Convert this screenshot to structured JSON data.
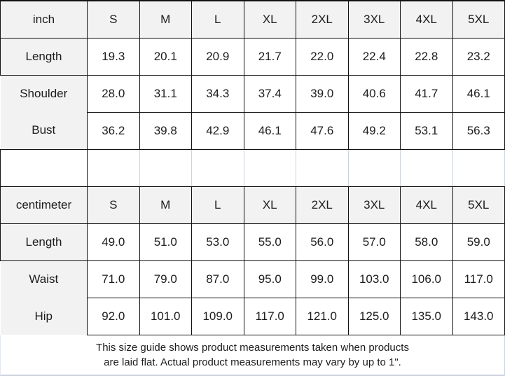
{
  "chart_data": [
    {
      "type": "table",
      "unit": "inch",
      "columns": [
        "S",
        "M",
        "L",
        "XL",
        "2XL",
        "3XL",
        "4XL",
        "5XL"
      ],
      "rows": [
        {
          "label": "Length",
          "values": [
            "19.3",
            "20.1",
            "20.9",
            "21.7",
            "22.0",
            "22.4",
            "22.8",
            "23.2"
          ]
        },
        {
          "label": "Shoulder",
          "values": [
            "28.0",
            "31.1",
            "34.3",
            "37.4",
            "39.0",
            "40.6",
            "41.7",
            "46.1"
          ]
        },
        {
          "label": "Bust",
          "values": [
            "36.2",
            "39.8",
            "42.9",
            "46.1",
            "47.6",
            "49.2",
            "53.1",
            "56.3"
          ]
        }
      ]
    },
    {
      "type": "table",
      "unit": "centimeter",
      "columns": [
        "S",
        "M",
        "L",
        "XL",
        "2XL",
        "3XL",
        "4XL",
        "5XL"
      ],
      "rows": [
        {
          "label": "Length",
          "values": [
            "49.0",
            "51.0",
            "53.0",
            "55.0",
            "56.0",
            "57.0",
            "58.0",
            "59.0"
          ]
        },
        {
          "label": "Waist",
          "values": [
            "71.0",
            "79.0",
            "87.0",
            "95.0",
            "99.0",
            "103.0",
            "106.0",
            "117.0"
          ]
        },
        {
          "label": "Hip",
          "values": [
            "92.0",
            "101.0",
            "109.0",
            "117.0",
            "121.0",
            "125.0",
            "135.0",
            "143.0"
          ]
        }
      ]
    }
  ],
  "note": {
    "line1": "This size guide shows product measurements taken when products",
    "line2": "are laid flat. Actual product measurements may vary by up to 1\"."
  },
  "colors": {
    "shaded_cell_bg": "#f2f2f2",
    "grid_dark": "#121212",
    "grid_light": "#cbd2e0",
    "text": "#1c1c1c"
  }
}
